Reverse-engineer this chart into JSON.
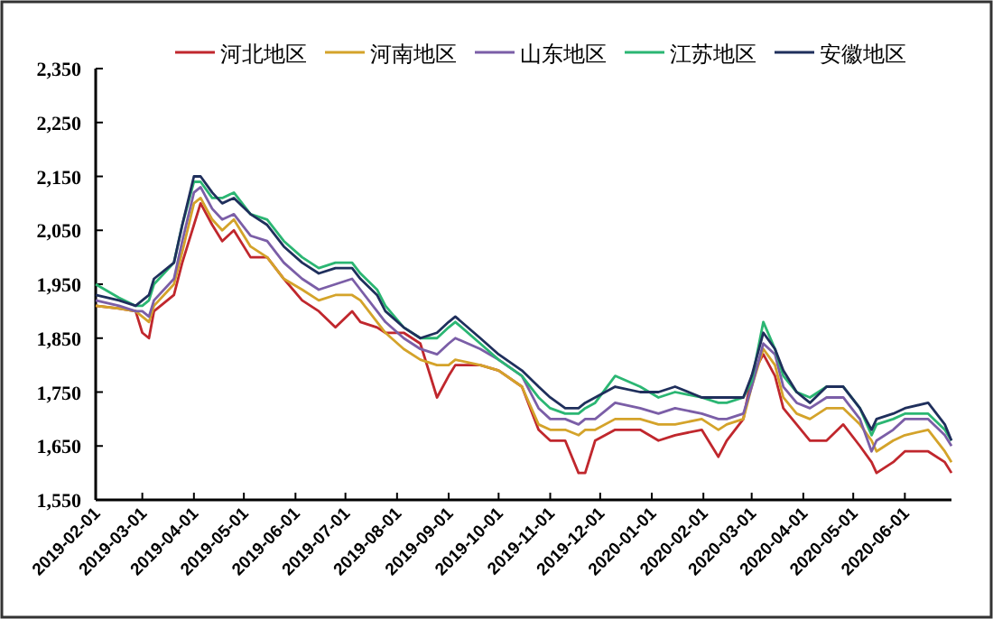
{
  "chart_data": {
    "type": "line",
    "legend": "top",
    "grid": false,
    "x": [
      "2019-02-01",
      "2019-02-15",
      "2019-02-25",
      "2019-03-01",
      "2019-03-05",
      "2019-03-08",
      "2019-03-20",
      "2019-03-25",
      "2019-04-01",
      "2019-04-05",
      "2019-04-12",
      "2019-04-18",
      "2019-04-25",
      "2019-05-05",
      "2019-05-15",
      "2019-05-25",
      "2019-06-05",
      "2019-06-15",
      "2019-06-25",
      "2019-07-05",
      "2019-07-10",
      "2019-07-20",
      "2019-07-25",
      "2019-08-05",
      "2019-08-15",
      "2019-08-25",
      "2019-09-01",
      "2019-09-05",
      "2019-09-20",
      "2019-10-01",
      "2019-10-15",
      "2019-10-25",
      "2019-11-01",
      "2019-11-10",
      "2019-11-18",
      "2019-11-22",
      "2019-11-28",
      "2019-12-10",
      "2019-12-25",
      "2020-01-05",
      "2020-01-15",
      "2020-01-31",
      "2020-02-10",
      "2020-02-15",
      "2020-02-25",
      "2020-03-01",
      "2020-03-08",
      "2020-03-15",
      "2020-03-20",
      "2020-03-28",
      "2020-04-05",
      "2020-04-15",
      "2020-04-25",
      "2020-05-05",
      "2020-05-12",
      "2020-05-15",
      "2020-05-25",
      "2020-06-01",
      "2020-06-15",
      "2020-06-25",
      "2020-06-29"
    ],
    "series": [
      {
        "name": "河北地区",
        "color": "#c0272d",
        "values": [
          1910,
          1905,
          1900,
          1860,
          1850,
          1900,
          1930,
          1990,
          2060,
          2100,
          2060,
          2030,
          2050,
          2000,
          2000,
          1960,
          1920,
          1900,
          1870,
          1900,
          1880,
          1870,
          1860,
          1860,
          1840,
          1740,
          1780,
          1800,
          1800,
          1790,
          1760,
          1680,
          1660,
          1660,
          1600,
          1600,
          1660,
          1680,
          1680,
          1660,
          1670,
          1680,
          1630,
          1660,
          1700,
          1780,
          1820,
          1780,
          1720,
          1690,
          1660,
          1660,
          1690,
          1650,
          1620,
          1600,
          1620,
          1640,
          1640,
          1620,
          1600
        ]
      },
      {
        "name": "河南地区",
        "color": "#d4a32a",
        "values": [
          1910,
          1905,
          1900,
          1890,
          1880,
          1910,
          1950,
          2010,
          2100,
          2110,
          2070,
          2050,
          2070,
          2020,
          2000,
          1960,
          1940,
          1920,
          1930,
          1930,
          1920,
          1880,
          1860,
          1830,
          1810,
          1800,
          1800,
          1810,
          1800,
          1790,
          1760,
          1690,
          1680,
          1680,
          1670,
          1680,
          1680,
          1700,
          1700,
          1690,
          1690,
          1700,
          1680,
          1690,
          1700,
          1760,
          1830,
          1800,
          1740,
          1710,
          1700,
          1720,
          1720,
          1690,
          1660,
          1640,
          1660,
          1670,
          1680,
          1640,
          1620
        ]
      },
      {
        "name": "山东地区",
        "color": "#7b5ea7",
        "values": [
          1920,
          1910,
          1900,
          1900,
          1890,
          1920,
          1960,
          2030,
          2120,
          2130,
          2090,
          2070,
          2080,
          2040,
          2030,
          1990,
          1960,
          1940,
          1950,
          1960,
          1940,
          1900,
          1880,
          1850,
          1830,
          1820,
          1840,
          1850,
          1830,
          1810,
          1780,
          1720,
          1700,
          1700,
          1690,
          1700,
          1700,
          1730,
          1720,
          1710,
          1720,
          1710,
          1700,
          1700,
          1710,
          1760,
          1840,
          1820,
          1760,
          1730,
          1720,
          1740,
          1740,
          1700,
          1640,
          1660,
          1680,
          1700,
          1700,
          1670,
          1650
        ]
      },
      {
        "name": "江苏地区",
        "color": "#2bb673",
        "values": [
          1950,
          1925,
          1910,
          1910,
          1920,
          1950,
          1990,
          2060,
          2140,
          2140,
          2110,
          2110,
          2120,
          2080,
          2070,
          2030,
          2000,
          1980,
          1990,
          1990,
          1970,
          1940,
          1910,
          1870,
          1850,
          1850,
          1870,
          1880,
          1840,
          1810,
          1780,
          1740,
          1720,
          1710,
          1710,
          1720,
          1730,
          1780,
          1760,
          1740,
          1750,
          1740,
          1730,
          1730,
          1740,
          1770,
          1880,
          1830,
          1780,
          1750,
          1740,
          1760,
          1760,
          1720,
          1670,
          1690,
          1700,
          1710,
          1710,
          1680,
          1660
        ]
      },
      {
        "name": "安徽地区",
        "color": "#1f2f5c",
        "values": [
          1930,
          1920,
          1910,
          1920,
          1930,
          1960,
          1990,
          2060,
          2150,
          2150,
          2120,
          2100,
          2110,
          2080,
          2060,
          2020,
          1990,
          1970,
          1980,
          1980,
          1960,
          1930,
          1900,
          1870,
          1850,
          1860,
          1880,
          1890,
          1850,
          1820,
          1790,
          1760,
          1740,
          1720,
          1720,
          1730,
          1740,
          1760,
          1750,
          1750,
          1760,
          1740,
          1740,
          1740,
          1740,
          1780,
          1860,
          1830,
          1790,
          1750,
          1730,
          1760,
          1760,
          1720,
          1680,
          1700,
          1710,
          1720,
          1730,
          1690,
          1660
        ]
      }
    ],
    "xlim": [
      "2019-02-01",
      "2020-06-29"
    ],
    "xticks": [
      "2019-02-01",
      "2019-03-01",
      "2019-04-01",
      "2019-05-01",
      "2019-06-01",
      "2019-07-01",
      "2019-08-01",
      "2019-09-01",
      "2019-10-01",
      "2019-11-01",
      "2019-12-01",
      "2020-01-01",
      "2020-02-01",
      "2020-03-01",
      "2020-04-01",
      "2020-05-01",
      "2020-06-01"
    ],
    "ylim": [
      1550,
      2350
    ],
    "yticks": [
      {
        "value": 1550,
        "label": "1,550"
      },
      {
        "value": 1650,
        "label": "1,650"
      },
      {
        "value": 1750,
        "label": "1,750"
      },
      {
        "value": 1850,
        "label": "1,850"
      },
      {
        "value": 1950,
        "label": "1,950"
      },
      {
        "value": 2050,
        "label": "2,050"
      },
      {
        "value": 2150,
        "label": "2,150"
      },
      {
        "value": 2250,
        "label": "2,250"
      },
      {
        "value": 2350,
        "label": "2,350"
      }
    ]
  }
}
